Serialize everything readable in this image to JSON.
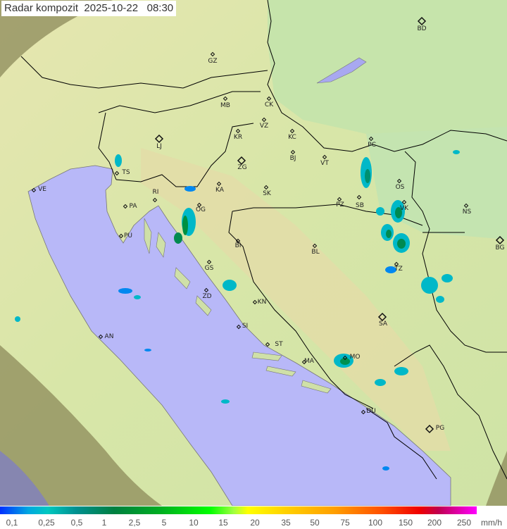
{
  "title": "Radar kompozit  2025-10-22   08:30",
  "legend": {
    "unit": "mm/h",
    "labels": [
      "0,1",
      "0,25",
      "0,5",
      "1",
      "2,5",
      "5",
      "10",
      "15",
      "20",
      "35",
      "50",
      "75",
      "100",
      "150",
      "200",
      "250"
    ],
    "colors": {
      "low": "#0030ff",
      "mid": "#00b020",
      "high": "#ffff00",
      "max": "#ff00ff"
    }
  },
  "colors": {
    "sea": "#b8b8f8",
    "land": "#c9e6a8",
    "outside_radar": "#8a8a60",
    "border": "#000000"
  },
  "cities": [
    {
      "code": "GZ",
      "major": false
    },
    {
      "code": "BD",
      "major": true
    },
    {
      "code": "MB",
      "major": false
    },
    {
      "code": "CK",
      "major": false
    },
    {
      "code": "VZ",
      "major": false
    },
    {
      "code": "KR",
      "major": false
    },
    {
      "code": "KC",
      "major": false
    },
    {
      "code": "PC",
      "major": false
    },
    {
      "code": "LJ",
      "major": true
    },
    {
      "code": "ZG",
      "major": true
    },
    {
      "code": "BJ",
      "major": false
    },
    {
      "code": "VT",
      "major": false
    },
    {
      "code": "TS",
      "major": false
    },
    {
      "code": "VE",
      "major": false
    },
    {
      "code": "RI",
      "major": false
    },
    {
      "code": "KA",
      "major": false
    },
    {
      "code": "SK",
      "major": false
    },
    {
      "code": "PZ",
      "major": false
    },
    {
      "code": "SB",
      "major": false
    },
    {
      "code": "OS",
      "major": false
    },
    {
      "code": "PA",
      "major": false
    },
    {
      "code": "OG",
      "major": false
    },
    {
      "code": "VK",
      "major": false
    },
    {
      "code": "NS",
      "major": false
    },
    {
      "code": "PU",
      "major": false
    },
    {
      "code": "BI",
      "major": false
    },
    {
      "code": "BL",
      "major": false
    },
    {
      "code": "BG",
      "major": true
    },
    {
      "code": "GS",
      "major": false
    },
    {
      "code": "TZ",
      "major": false
    },
    {
      "code": "ZD",
      "major": false
    },
    {
      "code": "KN",
      "major": false
    },
    {
      "code": "SA",
      "major": true
    },
    {
      "code": "AN",
      "major": false
    },
    {
      "code": "SI",
      "major": false
    },
    {
      "code": "ST",
      "major": false
    },
    {
      "code": "MA",
      "major": false
    },
    {
      "code": "MO",
      "major": false
    },
    {
      "code": "DU",
      "major": false
    },
    {
      "code": "PG",
      "major": true
    }
  ]
}
